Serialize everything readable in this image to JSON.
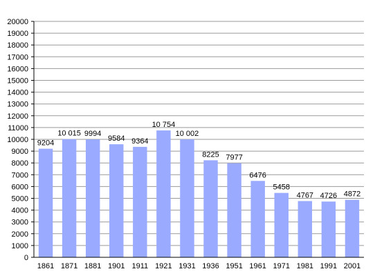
{
  "chart_data": {
    "type": "bar",
    "categories": [
      "1861",
      "1871",
      "1881",
      "1901",
      "1911",
      "1921",
      "1931",
      "1936",
      "1951",
      "1961",
      "1971",
      "1981",
      "1991",
      "2001"
    ],
    "values": [
      9204,
      10015,
      9994,
      9584,
      9364,
      10754,
      10002,
      8225,
      7977,
      6476,
      5458,
      4767,
      4726,
      4872
    ],
    "data_labels": [
      "9204",
      "10 015",
      "9994",
      "9584",
      "9364",
      "10 754",
      "10 002",
      "8225",
      "7977",
      "6476",
      "5458",
      "4767",
      "4726",
      "4872"
    ],
    "y_ticks": [
      "0",
      "1000",
      "2000",
      "3000",
      "4000",
      "5000",
      "6000",
      "7000",
      "8000",
      "9000",
      "10000",
      "11000",
      "12000",
      "13000",
      "14000",
      "15000",
      "16000",
      "17000",
      "18000",
      "19000",
      "20000"
    ],
    "ylim": [
      0,
      20000
    ],
    "grid": true,
    "legend": "none",
    "bar_color": "#99aaff",
    "title": "",
    "xlabel": "",
    "ylabel": ""
  }
}
